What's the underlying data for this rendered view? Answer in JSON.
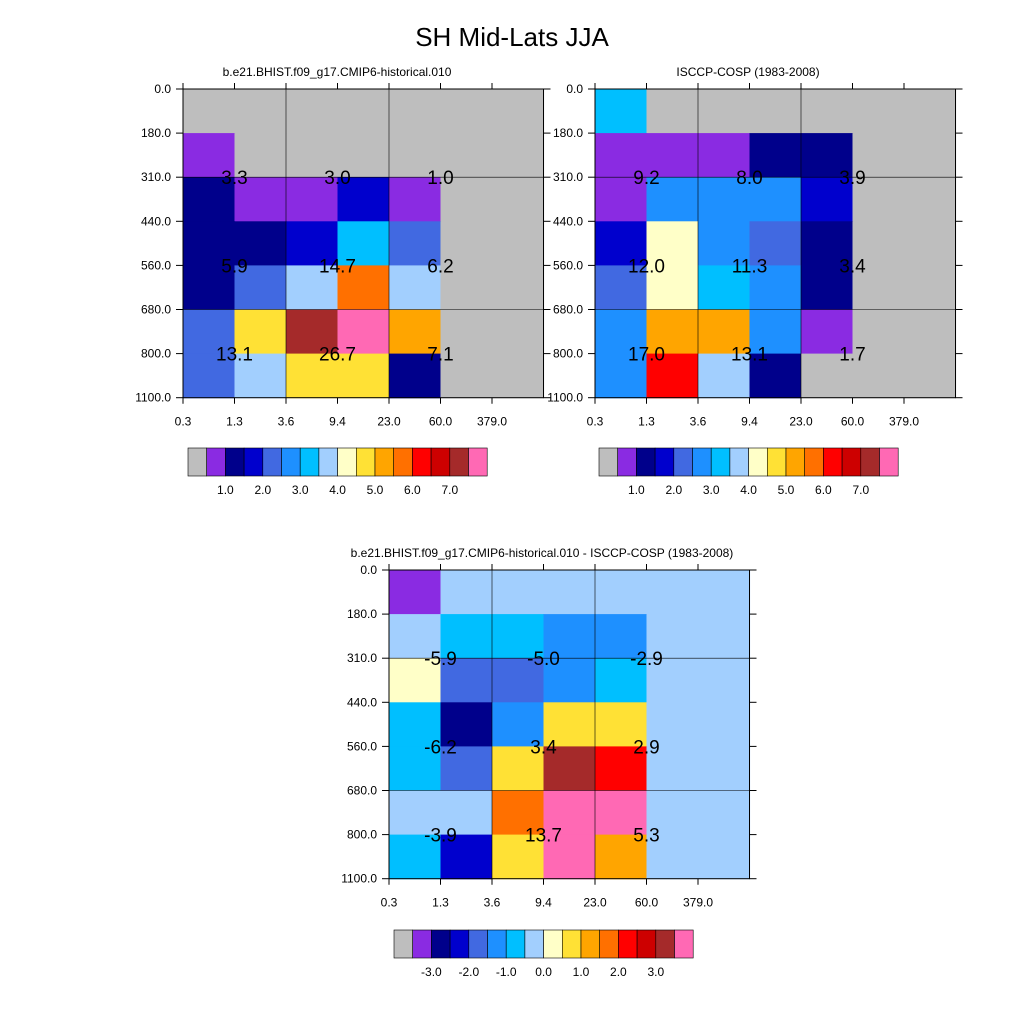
{
  "title": "SH Mid-Lats JJA",
  "x_ticks": [
    "0.3",
    "1.3",
    "3.6",
    "9.4",
    "23.0",
    "60.0",
    "379.0"
  ],
  "y_ticks": [
    "0.0",
    "180.0",
    "310.0",
    "440.0",
    "560.0",
    "680.0",
    "800.0",
    "1100.0"
  ],
  "palettes": {
    "abs": [
      "#bebebe",
      "#8a2be2",
      "#00008b",
      "#0000cd",
      "#4169e1",
      "#1e90ff",
      "#00bfff",
      "#a2cffe",
      "#ffffc8",
      "#ffe135",
      "#ffa500",
      "#ff7000",
      "#ff0000",
      "#cd0000",
      "#a52a2a",
      "#ff69b4"
    ],
    "diff": [
      "#bebebe",
      "#8a2be2",
      "#00008b",
      "#0000cd",
      "#4169e1",
      "#1e90ff",
      "#00bfff",
      "#a2cffe",
      "#ffffc8",
      "#ffe135",
      "#ffa500",
      "#ff7000",
      "#ff0000",
      "#cd0000",
      "#a52a2a",
      "#ff69b4"
    ]
  },
  "chart_data": [
    {
      "type": "heatmap",
      "title": "b.e21.BHIST.f09_g17.CMIP6-historical.010",
      "palette": "abs",
      "grid_lines": true,
      "cell_colors": [
        [
          0,
          0,
          0,
          0,
          0,
          0,
          0
        ],
        [
          1,
          0,
          0,
          0,
          0,
          0,
          0
        ],
        [
          2,
          1,
          1,
          3,
          1,
          0,
          0
        ],
        [
          2,
          2,
          3,
          6,
          4,
          0,
          0
        ],
        [
          2,
          4,
          7,
          11,
          7,
          0,
          0
        ],
        [
          4,
          9,
          14,
          15,
          10,
          0,
          0
        ],
        [
          4,
          7,
          9,
          9,
          2,
          0,
          0
        ]
      ],
      "annotations": [
        {
          "row": 1,
          "col": 0,
          "text": "3.3"
        },
        {
          "row": 1,
          "col": 2,
          "text": "3.0"
        },
        {
          "row": 1,
          "col": 4,
          "text": "1.0"
        },
        {
          "row": 3,
          "col": 0,
          "text": "5.9"
        },
        {
          "row": 3,
          "col": 2,
          "text": "14.7"
        },
        {
          "row": 3,
          "col": 4,
          "text": "6.2"
        },
        {
          "row": 5,
          "col": 0,
          "text": "13.1"
        },
        {
          "row": 5,
          "col": 2,
          "text": "26.7"
        },
        {
          "row": 5,
          "col": 4,
          "text": "7.1"
        }
      ],
      "colorbar_labels": [
        "1.0",
        "2.0",
        "3.0",
        "4.0",
        "5.0",
        "6.0",
        "7.0"
      ]
    },
    {
      "type": "heatmap",
      "title": "ISCCP-COSP (1983-2008)",
      "palette": "abs",
      "grid_lines": true,
      "cell_colors": [
        [
          6,
          0,
          0,
          0,
          0,
          0,
          0
        ],
        [
          1,
          1,
          1,
          2,
          2,
          0,
          0
        ],
        [
          1,
          5,
          5,
          5,
          3,
          0,
          0
        ],
        [
          3,
          8,
          5,
          4,
          2,
          0,
          0
        ],
        [
          4,
          8,
          6,
          5,
          2,
          0,
          0
        ],
        [
          5,
          10,
          10,
          5,
          1,
          0,
          0
        ],
        [
          5,
          12,
          7,
          2,
          0,
          0,
          0
        ]
      ],
      "annotations": [
        {
          "row": 1,
          "col": 0,
          "text": "9.2"
        },
        {
          "row": 1,
          "col": 2,
          "text": "8.0"
        },
        {
          "row": 1,
          "col": 4,
          "text": "3.9"
        },
        {
          "row": 3,
          "col": 0,
          "text": "12.0"
        },
        {
          "row": 3,
          "col": 2,
          "text": "11.3"
        },
        {
          "row": 3,
          "col": 4,
          "text": "3.4"
        },
        {
          "row": 5,
          "col": 0,
          "text": "17.0"
        },
        {
          "row": 5,
          "col": 2,
          "text": "13.1"
        },
        {
          "row": 5,
          "col": 4,
          "text": "1.7"
        }
      ],
      "colorbar_labels": [
        "1.0",
        "2.0",
        "3.0",
        "4.0",
        "5.0",
        "6.0",
        "7.0"
      ]
    },
    {
      "type": "heatmap",
      "title": "b.e21.BHIST.f09_g17.CMIP6-historical.010 - ISCCP-COSP (1983-2008)",
      "palette": "diff",
      "grid_lines": true,
      "cell_colors": [
        [
          1,
          7,
          7,
          7,
          7,
          7,
          7
        ],
        [
          7,
          6,
          6,
          5,
          5,
          7,
          7
        ],
        [
          8,
          4,
          4,
          5,
          6,
          7,
          7
        ],
        [
          6,
          2,
          5,
          9,
          9,
          7,
          7
        ],
        [
          6,
          4,
          9,
          14,
          12,
          7,
          7
        ],
        [
          7,
          7,
          11,
          15,
          15,
          7,
          7
        ],
        [
          6,
          3,
          9,
          15,
          10,
          7,
          7
        ]
      ],
      "annotations": [
        {
          "row": 1,
          "col": 0,
          "text": "-5.9"
        },
        {
          "row": 1,
          "col": 2,
          "text": "-5.0"
        },
        {
          "row": 1,
          "col": 4,
          "text": "-2.9"
        },
        {
          "row": 3,
          "col": 0,
          "text": "-6.2"
        },
        {
          "row": 3,
          "col": 2,
          "text": "3.4"
        },
        {
          "row": 3,
          "col": 4,
          "text": "2.9"
        },
        {
          "row": 5,
          "col": 0,
          "text": "-3.9"
        },
        {
          "row": 5,
          "col": 2,
          "text": "13.7"
        },
        {
          "row": 5,
          "col": 4,
          "text": "5.3"
        }
      ],
      "colorbar_labels": [
        "-3.0",
        "-2.0",
        "-1.0",
        "0.0",
        "1.0",
        "2.0",
        "3.0"
      ]
    }
  ]
}
